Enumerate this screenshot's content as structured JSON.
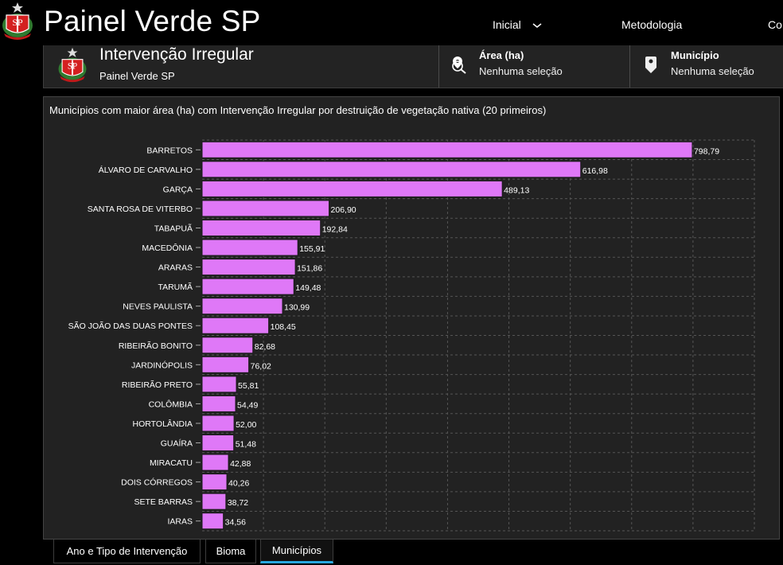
{
  "header": {
    "app_title": "Painel Verde SP",
    "logo": "sp-coat-of-arms-icon",
    "nav": [
      {
        "label": "Inicial",
        "icon": "chevron-down-icon"
      },
      {
        "label": "Metodologia"
      },
      {
        "label": "Co"
      }
    ]
  },
  "infobar": {
    "title": "Intervenção Irregular",
    "subtitle": "Painel Verde SP",
    "selectors": [
      {
        "label": "Área (ha)",
        "value": "Nenhuma seleção",
        "icon": "map-pin-search-icon"
      },
      {
        "label": "Município",
        "value": "Nenhuma seleção",
        "icon": "map-pin-icon"
      }
    ]
  },
  "colors": {
    "bar": "#df78f7",
    "background": "#000000",
    "panel": "#222222",
    "active_tab_underline": "#28a8e0"
  },
  "chart_data": {
    "type": "bar",
    "orientation": "horizontal",
    "title": "Municípios com maior área (ha) com Intervenção Irregular por destruição de vegetação nativa (20 primeiros)",
    "xlabel": "",
    "ylabel": "",
    "xlim": [
      0,
      900
    ],
    "grid": true,
    "grid_step": 100,
    "categories": [
      "BARRETOS",
      "ÁLVARO DE CARVALHO",
      "GARÇA",
      "SANTA ROSA DE VITERBO",
      "TABAPUÃ",
      "MACEDÔNIA",
      "ARARAS",
      "TARUMÃ",
      "NEVES PAULISTA",
      "SÃO JOÃO DAS DUAS PONTES",
      "RIBEIRÃO BONITO",
      "JARDINÓPOLIS",
      "RIBEIRÃO PRETO",
      "COLÔMBIA",
      "HORTOLÂNDIA",
      "GUAÍRA",
      "MIRACATU",
      "DOIS CÓRREGOS",
      "SETE BARRAS",
      "IARAS"
    ],
    "values": [
      798.79,
      616.98,
      489.13,
      206.9,
      192.84,
      155.91,
      151.86,
      149.48,
      130.99,
      108.45,
      82.68,
      76.02,
      55.81,
      54.49,
      52.0,
      51.48,
      42.88,
      40.26,
      38.72,
      34.56
    ],
    "value_labels": [
      "798,79",
      "616,98",
      "489,13",
      "206,90",
      "192,84",
      "155,91",
      "151,86",
      "149,48",
      "130,99",
      "108,45",
      "82,68",
      "76,02",
      "55,81",
      "54,49",
      "52,00",
      "51,48",
      "42,88",
      "40,26",
      "38,72",
      "34,56"
    ]
  },
  "tabs": [
    {
      "label": "Ano e Tipo de Intervenção",
      "active": false
    },
    {
      "label": "Bioma",
      "active": false
    },
    {
      "label": "Municípios",
      "active": true
    }
  ]
}
